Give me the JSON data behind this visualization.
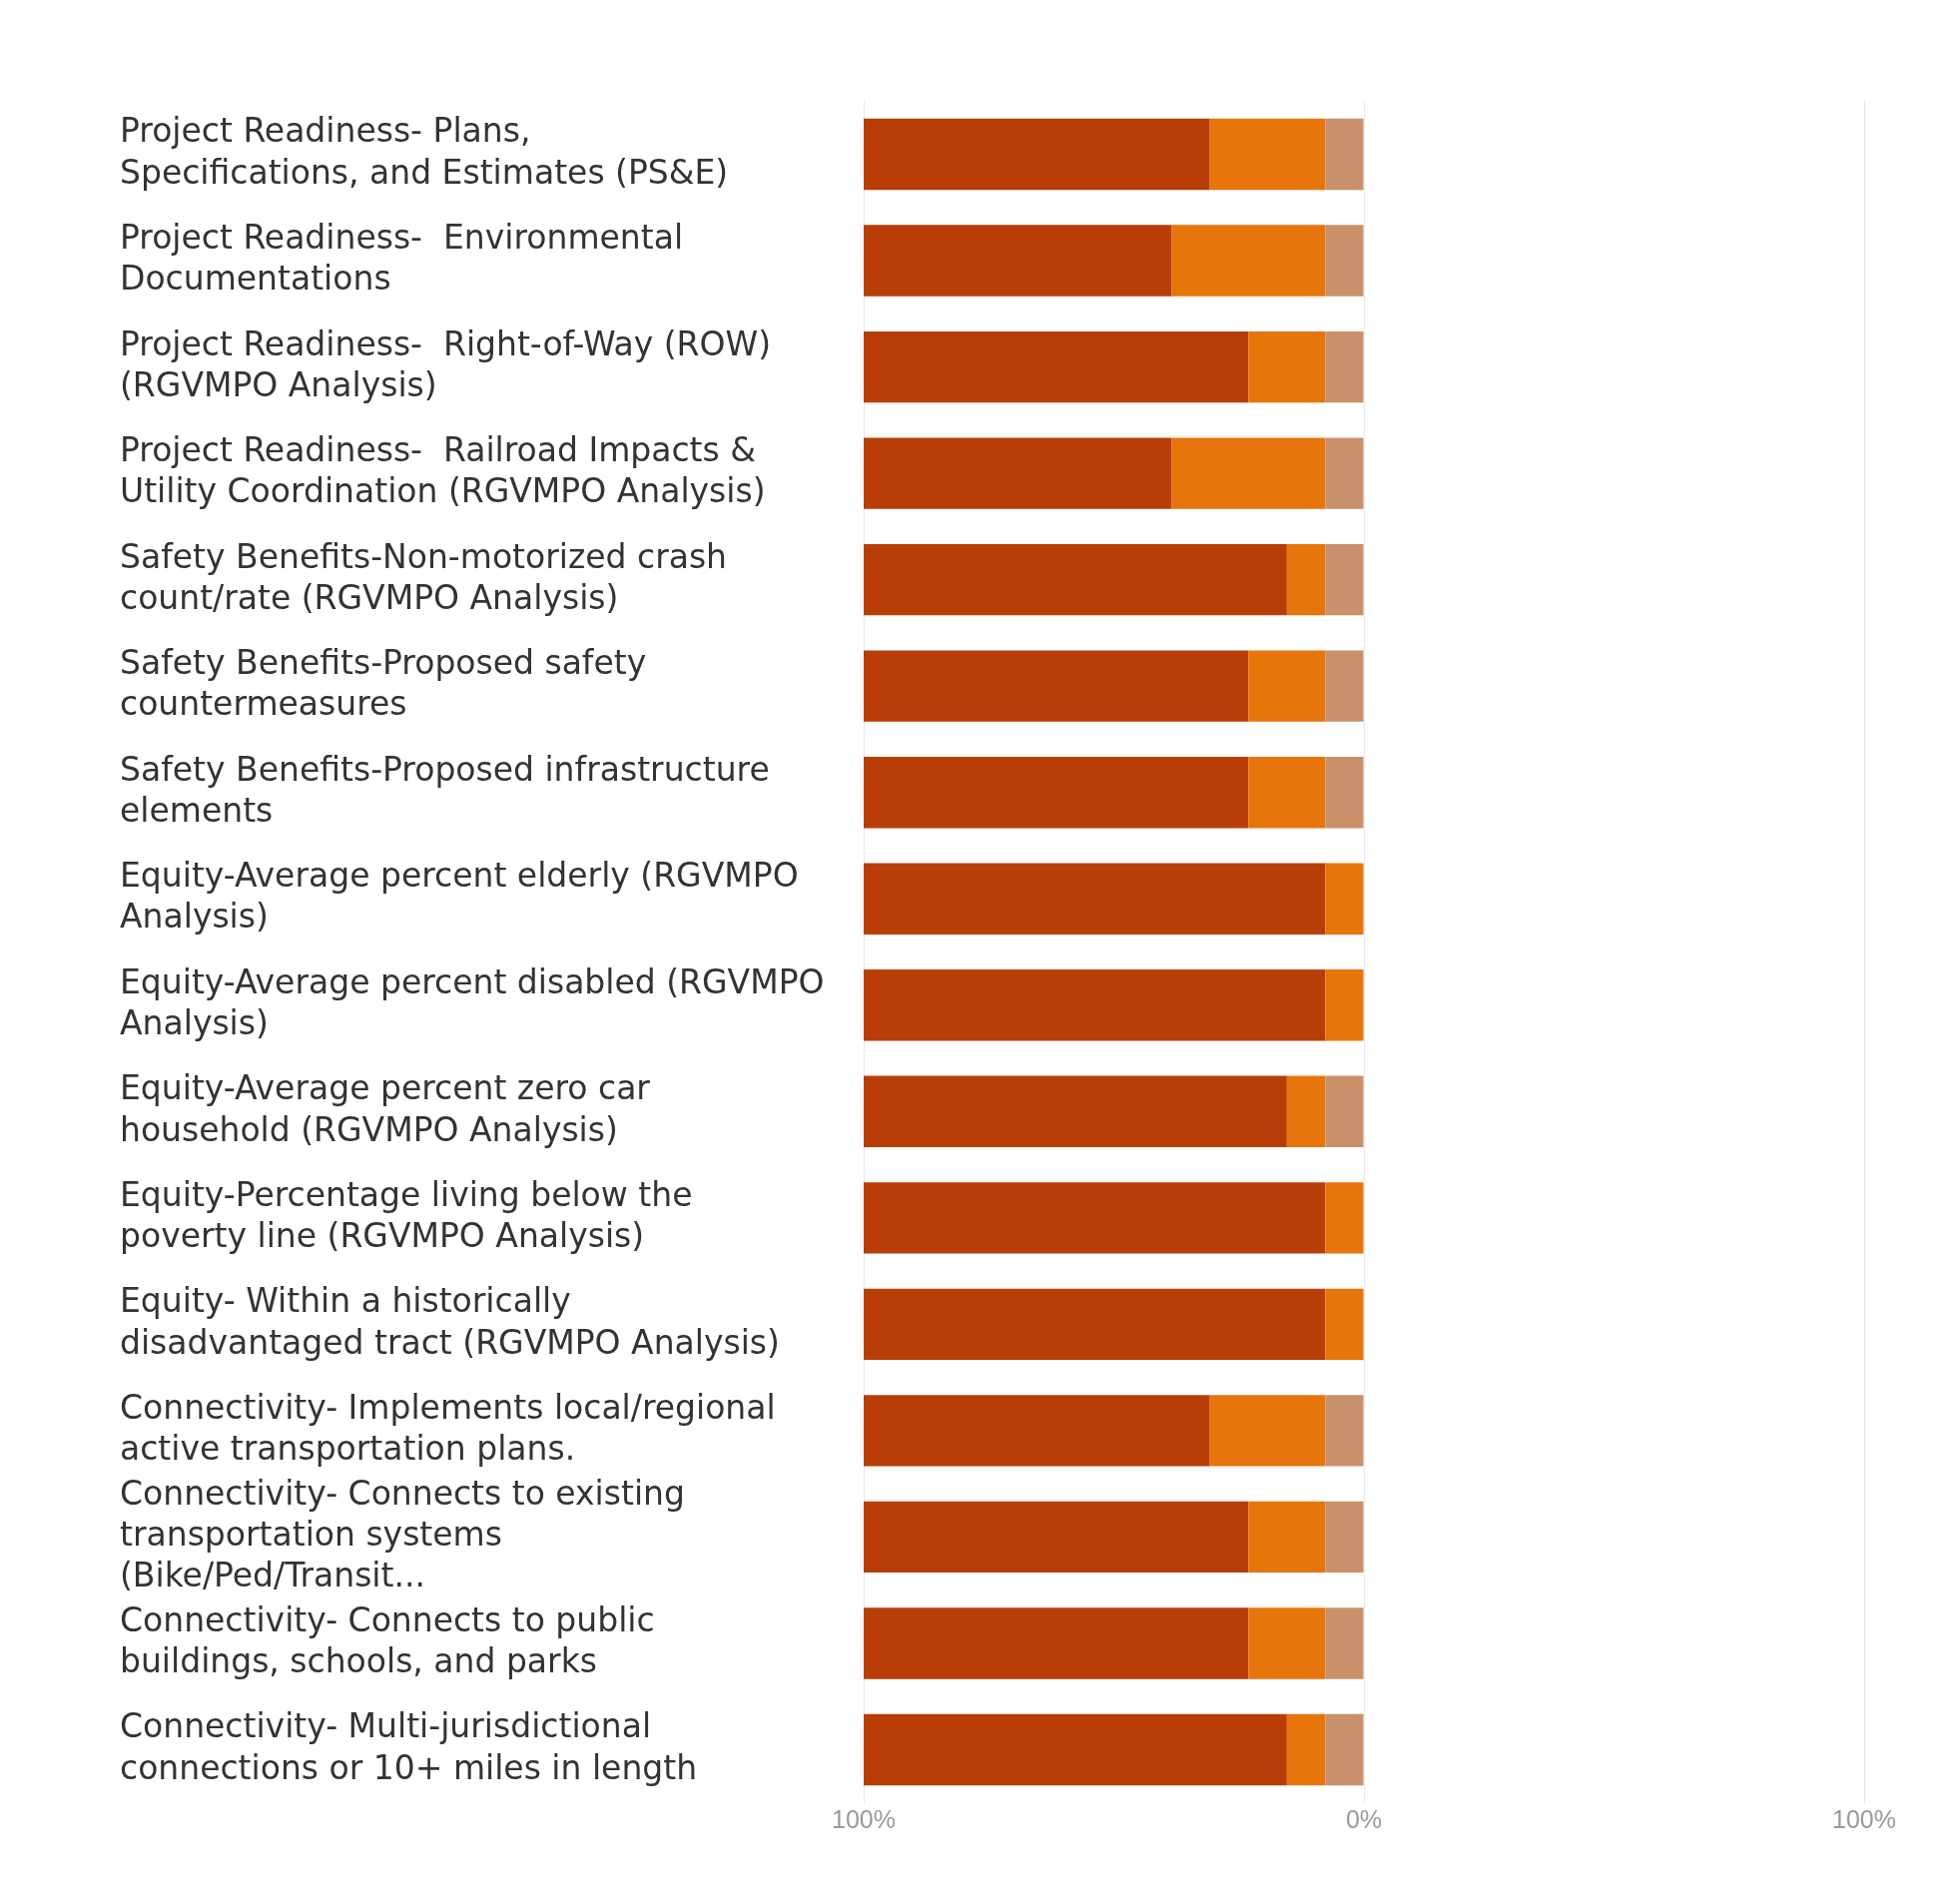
{
  "chart_data": {
    "type": "bar",
    "orientation": "horizontal",
    "stacked": true,
    "categories": [
      "Project Readiness- Plans, Specifications, and Estimates (PS&E)",
      "Project Readiness-  Environmental Documentations",
      "Project Readiness-  Right-of-Way (ROW) (RGVMPO Analysis)",
      "Project Readiness-  Railroad Impacts & Utility Coordination (RGVMPO Analysis)",
      "Safety Benefits-Non-motorized crash count/rate (RGVMPO Analysis)",
      "Safety Benefits-Proposed safety countermeasures",
      "Safety Benefits-Proposed infrastructure elements",
      "Equity-Average percent elderly (RGVMPO Analysis)",
      "Equity-Average percent disabled (RGVMPO Analysis)",
      "Equity-Average percent zero car household (RGVMPO Analysis)",
      "Equity-Percentage living below the poverty line (RGVMPO Analysis)",
      "Equity- Within a historically disadvantaged tract (RGVMPO Analysis)",
      "Connectivity- Implements local/regional active transportation plans.",
      "Connectivity- Connects to existing transportation systems (Bike/Ped/Transit...",
      "Connectivity- Connects to public buildings, schools, and parks",
      "Connectivity- Multi-jurisdictional connections or 10+ miles in length"
    ],
    "series": [
      {
        "color": "#c8916b",
        "values": [
          -7.7,
          -7.7,
          -7.7,
          -7.7,
          -7.7,
          -7.7,
          -7.7,
          0,
          0,
          -7.7,
          0,
          0,
          -7.7,
          -7.7,
          -7.7,
          -7.7
        ]
      },
      {
        "color": "#e8740c",
        "values": [
          -23.1,
          -30.8,
          -15.4,
          -30.8,
          -7.7,
          -15.4,
          -15.4,
          -7.7,
          -7.7,
          -7.7,
          -7.7,
          -7.7,
          -23.1,
          -15.4,
          -15.4,
          -7.7
        ]
      },
      {
        "color": "#b93d07",
        "values": [
          -69.2,
          -61.5,
          -76.9,
          -61.5,
          -84.6,
          -76.9,
          -76.9,
          -92.3,
          -92.3,
          -84.6,
          -92.3,
          -92.3,
          -69.2,
          -76.9,
          -76.9,
          -84.6
        ]
      }
    ],
    "xlim": [
      -100,
      100
    ],
    "xticks": [
      {
        "value": -100,
        "label": "100%"
      },
      {
        "value": 0,
        "label": "0%"
      },
      {
        "value": 100,
        "label": "100%"
      }
    ],
    "grid": "x",
    "legend": false
  }
}
